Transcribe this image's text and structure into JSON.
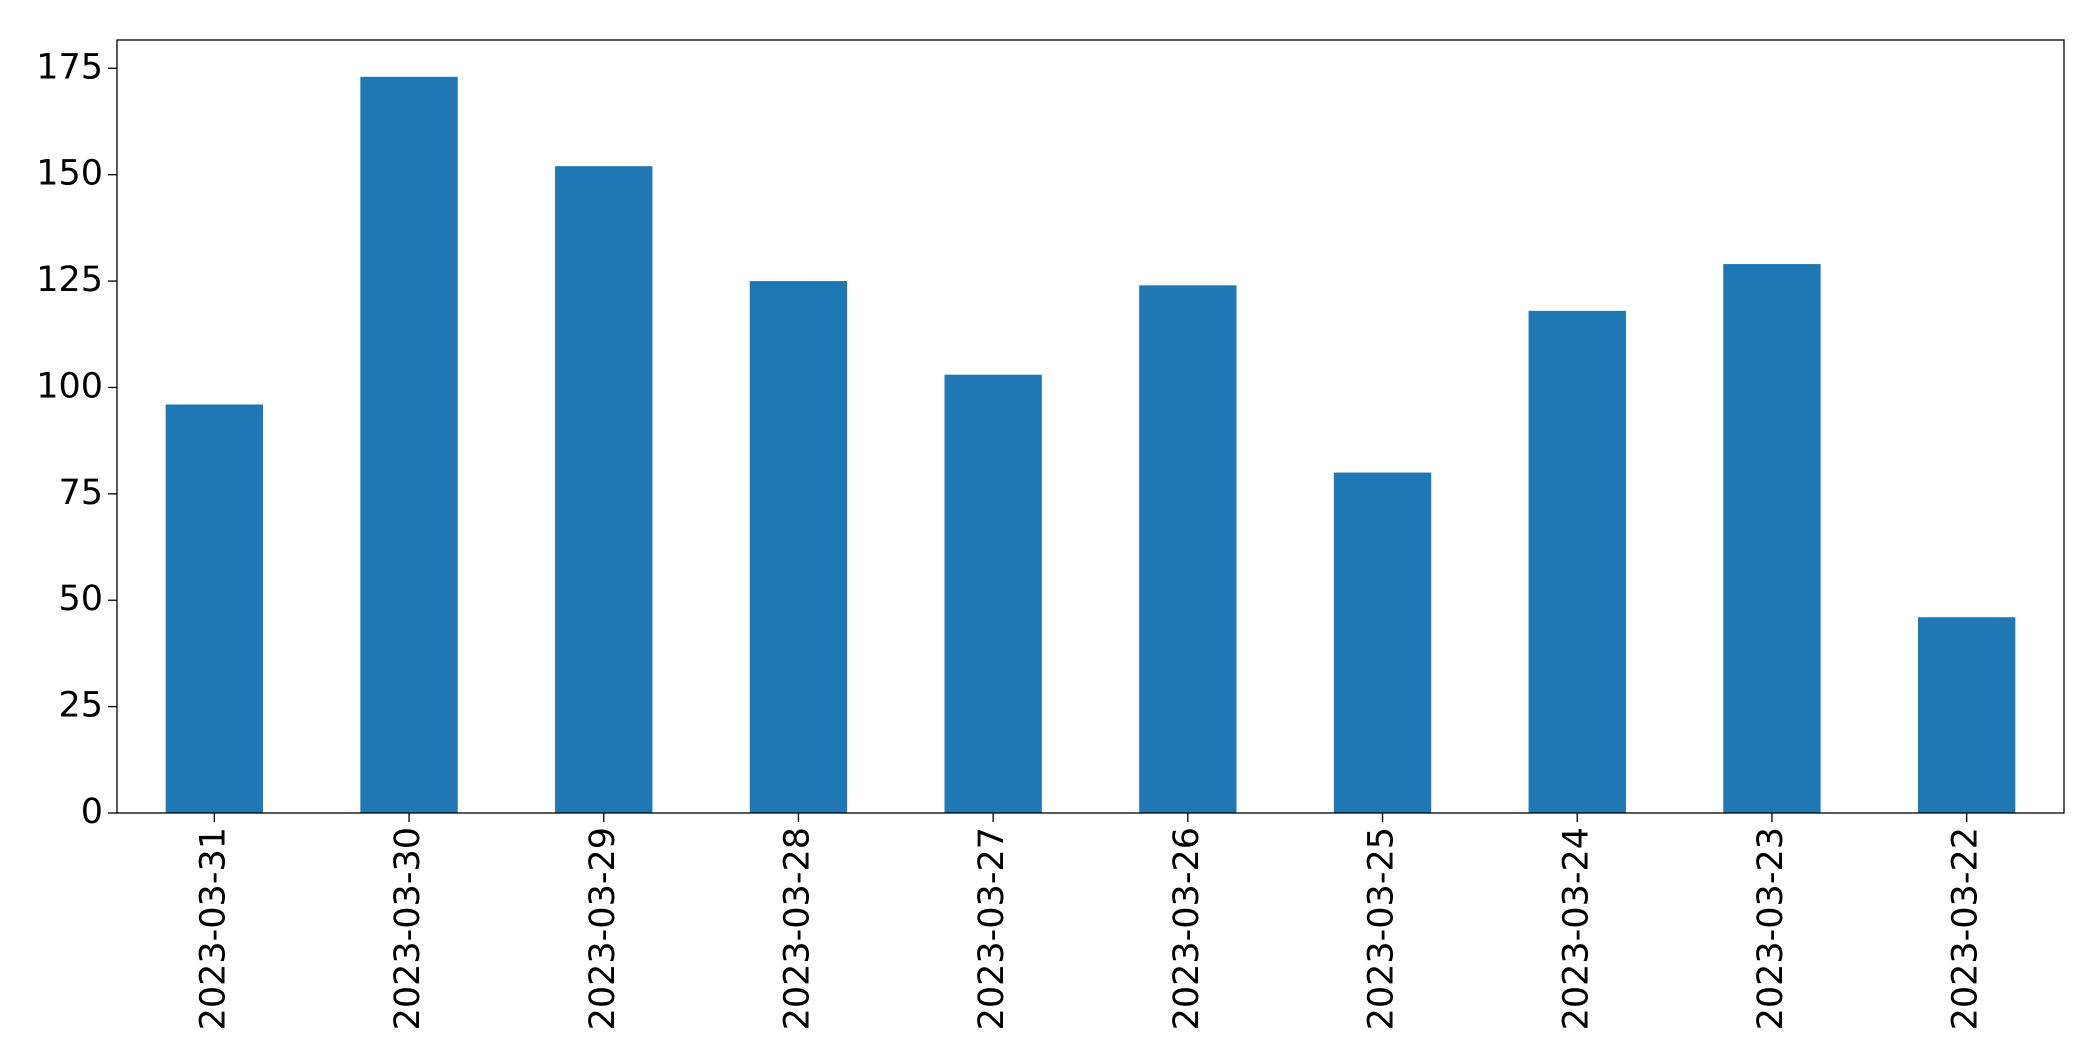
{
  "chart_data": {
    "type": "bar",
    "categories": [
      "2023-03-31",
      "2023-03-30",
      "2023-03-29",
      "2023-03-28",
      "2023-03-27",
      "2023-03-26",
      "2023-03-25",
      "2023-03-24",
      "2023-03-23",
      "2023-03-22"
    ],
    "values": [
      96,
      173,
      152,
      125,
      103,
      124,
      80,
      118,
      129,
      46
    ],
    "color": "#1f77b4",
    "ylim": [
      0,
      181.65
    ],
    "yticks": [
      0,
      25,
      50,
      75,
      100,
      125,
      150,
      175
    ],
    "grid": false
  }
}
